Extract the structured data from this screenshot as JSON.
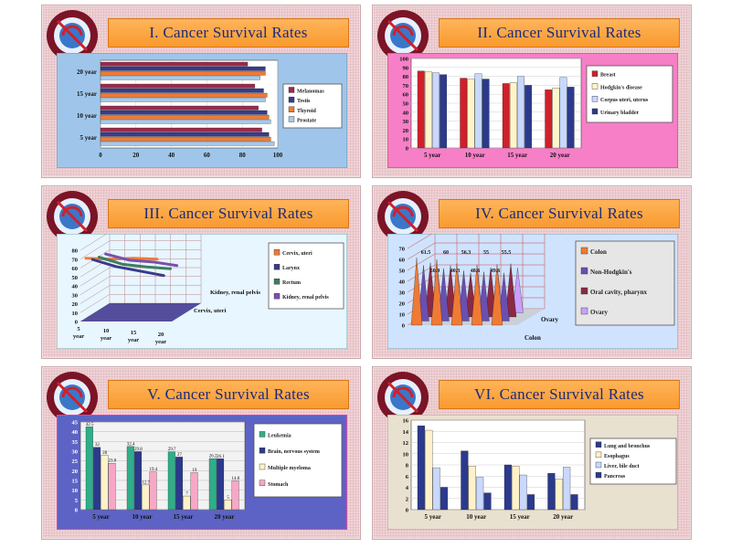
{
  "panels": [
    {
      "title": "I. Cancer Survival Rates",
      "chart_data": {
        "type": "bar",
        "orientation": "horizontal",
        "categories": [
          "5 year",
          "10 year",
          "15 year",
          "20 year"
        ],
        "category_labels_shown": [
          "5 year",
          "10 year",
          "15 year",
          "20 year"
        ],
        "series": [
          {
            "name": "Melanomas",
            "color": "#9b2b4a",
            "values": [
              91,
              89,
              87,
              83
            ]
          },
          {
            "name": "Testis",
            "color": "#3a3a8c",
            "values": [
              95,
              94,
              92,
              93
            ]
          },
          {
            "name": "Thyroid",
            "color": "#f07a33",
            "values": [
              96,
              95,
              94,
              93
            ]
          },
          {
            "name": "Prostate",
            "color": "#a8c8e6",
            "values": [
              98,
              96,
              93,
              90
            ]
          }
        ],
        "xlim": [
          0,
          100
        ],
        "xticks": [
          "0",
          "20",
          "40",
          "60",
          "80",
          "100"
        ],
        "background": "#9fc6ea",
        "legend_position": "right"
      }
    },
    {
      "title": "II. Cancer Survival Rates",
      "chart_data": {
        "type": "bar",
        "categories": [
          "5 year",
          "10 year",
          "15 year",
          "20 year"
        ],
        "series": [
          {
            "name": "Breast",
            "color": "#d0202a",
            "values": [
              86,
              78,
              72,
              65
            ]
          },
          {
            "name": "Hodgkin's disease",
            "color": "#fff5c9",
            "values": [
              85,
              77,
              73,
              67
            ]
          },
          {
            "name": "Corpus uteri, uterus",
            "color": "#c8d8ff",
            "values": [
              84,
              83,
              80,
              79
            ]
          },
          {
            "name": "Urinary bladder",
            "color": "#2b3a8c",
            "values": [
              82,
              77,
              70,
              68
            ]
          }
        ],
        "ylim": [
          0,
          100
        ],
        "yticks": [
          "0",
          "10",
          "20",
          "30",
          "40",
          "50",
          "60",
          "70",
          "80",
          "90",
          "100"
        ],
        "background": "#f77fc7",
        "legend_position": "right"
      }
    },
    {
      "title": "III. Cancer Survival Rates",
      "chart_data": {
        "type": "line",
        "view": "3d",
        "categories": [
          "5 year",
          "10 year",
          "15 year",
          "20 year"
        ],
        "depth_labels_shown": [
          "Kidney, renal pelvis",
          "Cervix, uteri"
        ],
        "series": [
          {
            "name": "Cervix, uteri",
            "color": "#f07a33",
            "values": [
              71,
              70,
              71,
              70
            ]
          },
          {
            "name": "Larynx",
            "color": "#3a3a8c",
            "values": [
              65,
              57,
              52,
              47
            ]
          },
          {
            "name": "Rectum",
            "color": "#3b7f5e",
            "values": [
              63,
              55,
              52,
              50
            ]
          },
          {
            "name": "Kidney, renal pelvis",
            "color": "#7a4fb0",
            "values": [
              62,
              55,
              53,
              49
            ]
          }
        ],
        "ylim": [
          0,
          80
        ],
        "yticks": [
          "0",
          "10",
          "20",
          "30",
          "40",
          "50",
          "60",
          "70",
          "80"
        ],
        "background": "#e8f6ff",
        "legend_position": "right"
      }
    },
    {
      "title": "IV. Cancer Survival Rates",
      "chart_data": {
        "type": "bar",
        "bar_shape": "cone",
        "view": "3d",
        "depth_labels_shown": [
          "Ovary",
          "Colon"
        ],
        "data_labels_shown": [
          "61.5",
          "60",
          "56.3",
          "55",
          "55.5",
          "50.9",
          "40.3",
          "48.6",
          "49.6"
        ],
        "series": [
          {
            "name": "Colon",
            "color": "#f07a33"
          },
          {
            "name": "Non-Hodgkin's",
            "color": "#6a4fb0"
          },
          {
            "name": "Oral cavity, pharynx",
            "color": "#8a2a44"
          },
          {
            "name": "Ovary",
            "color": "#c9a0ff"
          }
        ],
        "ylim": [
          0,
          70
        ],
        "yticks": [
          "0",
          "10",
          "20",
          "30",
          "40",
          "50",
          "60",
          "70"
        ],
        "background": "#cfe3ff",
        "legend_position": "right"
      }
    },
    {
      "title": "V. Cancer Survival Rates",
      "chart_data": {
        "type": "bar",
        "categories": [
          "5 year",
          "10 year",
          "15 year",
          "20 year"
        ],
        "series": [
          {
            "name": "Leukemia",
            "color": "#2fae8a",
            "values": [
              42.5,
              32.4,
              29.7,
              26.2
            ]
          },
          {
            "name": "Brain, nervous system",
            "color": "#2b3a8c",
            "values": [
              32.0,
              29.8,
              27.0,
              26.1
            ]
          },
          {
            "name": "Multiple myeloma",
            "color": "#fff2c9",
            "values": [
              28.0,
              12.7,
              7.0,
              5.0
            ]
          },
          {
            "name": "Stomach",
            "color": "#f8a7c7",
            "values": [
              23.8,
              19.4,
              19.0,
              14.8
            ]
          }
        ],
        "data_labels_shown": [
          "42.5",
          "32.4",
          "29.7",
          "26.2",
          "23.8",
          "19.4",
          "12.7",
          "19.0",
          "14.8"
        ],
        "ylim": [
          0,
          45
        ],
        "yticks": [
          "0",
          "5",
          "10",
          "15",
          "20",
          "25",
          "30",
          "35",
          "40",
          "45"
        ],
        "background": "#5d63c4",
        "legend_position": "right"
      }
    },
    {
      "title": "VI. Cancer Survival Rates",
      "chart_data": {
        "type": "bar",
        "categories": [
          "5 year",
          "10 year",
          "15 year",
          "20 year"
        ],
        "series": [
          {
            "name": "Lung and bronchus",
            "color": "#2b3a8c",
            "values": [
              15.0,
              10.5,
              8.0,
              6.5
            ]
          },
          {
            "name": "Esophagus",
            "color": "#fff2c9",
            "values": [
              14.2,
              7.8,
              7.8,
              5.5
            ]
          },
          {
            "name": "Liver, bile duct",
            "color": "#c8d8ff",
            "values": [
              7.5,
              5.8,
              6.2,
              7.6
            ]
          },
          {
            "name": "Pancreas",
            "color": "#2b3a8c",
            "values": [
              4.0,
              3.0,
              2.7,
              2.7
            ]
          }
        ],
        "ylim": [
          0,
          16
        ],
        "yticks": [
          "0",
          "2",
          "4",
          "6",
          "8",
          "10",
          "12",
          "14",
          "16"
        ],
        "background": "#e9e1cf",
        "legend_position": "right"
      }
    }
  ]
}
